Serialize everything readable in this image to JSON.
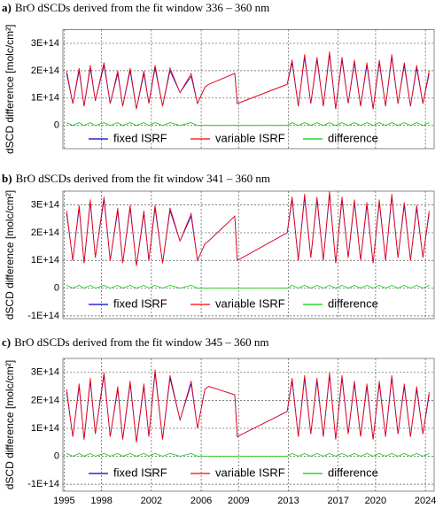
{
  "chart_data": [
    {
      "type": "line",
      "label": "a)",
      "title": "BrO dSCDs derived from the fit window 336 – 360 nm",
      "y_label": "dSCD difference [molc/cm²]",
      "grid": true,
      "x_tick_labels": false,
      "xlim": [
        1994.9,
        2024.7
      ],
      "xticks": [
        1995,
        1998,
        2002,
        2006,
        2009,
        2013,
        2017,
        2020,
        2024
      ],
      "ylim": [
        -85000000000000.0,
        350000000000000.0
      ],
      "yticks": [
        0,
        {
          "value": 100000000000000.0,
          "label": "1E+14"
        },
        {
          "value": 200000000000000.0,
          "label": "2E+14"
        },
        {
          "value": 300000000000000.0,
          "label": "3E+14"
        }
      ],
      "x": [
        1995.2,
        1995.7,
        1996.2,
        1996.6,
        1997.1,
        1997.5,
        1998.2,
        1998.7,
        1999.3,
        1999.7,
        2000.3,
        2000.8,
        2001.4,
        2001.8,
        2002.3,
        2002.9,
        2003.5,
        2004.3,
        2005.2,
        2005.7,
        2006.3,
        2006.6,
        2008.7,
        2008.9,
        2012.9,
        2013.3,
        2013.8,
        2014.3,
        2014.8,
        2015.3,
        2015.8,
        2016.3,
        2016.8,
        2017.3,
        2017.8,
        2018.3,
        2018.8,
        2019.3,
        2019.8,
        2020.3,
        2020.8,
        2021.3,
        2021.8,
        2022.3,
        2022.8,
        2023.3,
        2023.8,
        2024.3
      ],
      "series": [
        {
          "name": "fixed ISRF",
          "color": "#0000cc",
          "values": [
            190000000000000.0,
            80000000000000.0,
            200000000000000.0,
            70000000000000.0,
            210000000000000.0,
            90000000000000.0,
            220000000000000.0,
            80000000000000.0,
            190000000000000.0,
            70000000000000.0,
            200000000000000.0,
            60000000000000.0,
            190000000000000.0,
            80000000000000.0,
            210000000000000.0,
            70000000000000.0,
            200000000000000.0,
            120000000000000.0,
            180000000000000.0,
            80000000000000.0,
            140000000000000.0,
            150000000000000.0,
            190000000000000.0,
            80000000000000.0,
            150000000000000.0,
            230000000000000.0,
            70000000000000.0,
            250000000000000.0,
            80000000000000.0,
            240000000000000.0,
            70000000000000.0,
            260000000000000.0,
            60000000000000.0,
            240000000000000.0,
            80000000000000.0,
            230000000000000.0,
            70000000000000.0,
            220000000000000.0,
            60000000000000.0,
            230000000000000.0,
            70000000000000.0,
            250000000000000.0,
            80000000000000.0,
            220000000000000.0,
            70000000000000.0,
            210000000000000.0,
            80000000000000.0,
            190000000000000.0
          ]
        },
        {
          "name": "variable ISRF",
          "color": "#ff0000",
          "values": [
            200000000000000.0,
            80000000000000.0,
            210000000000000.0,
            70000000000000.0,
            220000000000000.0,
            90000000000000.0,
            230000000000000.0,
            80000000000000.0,
            200000000000000.0,
            70000000000000.0,
            210000000000000.0,
            60000000000000.0,
            200000000000000.0,
            80000000000000.0,
            220000000000000.0,
            70000000000000.0,
            210000000000000.0,
            120000000000000.0,
            190000000000000.0,
            80000000000000.0,
            140000000000000.0,
            150000000000000.0,
            190000000000000.0,
            80000000000000.0,
            150000000000000.0,
            240000000000000.0,
            70000000000000.0,
            260000000000000.0,
            80000000000000.0,
            250000000000000.0,
            70000000000000.0,
            270000000000000.0,
            60000000000000.0,
            250000000000000.0,
            80000000000000.0,
            240000000000000.0,
            70000000000000.0,
            230000000000000.0,
            60000000000000.0,
            240000000000000.0,
            70000000000000.0,
            260000000000000.0,
            80000000000000.0,
            230000000000000.0,
            70000000000000.0,
            220000000000000.0,
            80000000000000.0,
            200000000000000.0
          ]
        },
        {
          "name": "difference",
          "color": "#00cc00",
          "values": [
            10000000000000.0,
            0,
            10000000000000.0,
            0,
            10000000000000.0,
            0,
            10000000000000.0,
            0,
            10000000000000.0,
            0,
            10000000000000.0,
            0,
            10000000000000.0,
            0,
            10000000000000.0,
            0,
            10000000000000.0,
            0,
            10000000000000.0,
            0,
            0,
            0,
            0,
            0,
            0,
            10000000000000.0,
            0,
            10000000000000.0,
            0,
            10000000000000.0,
            0,
            10000000000000.0,
            0,
            10000000000000.0,
            0,
            10000000000000.0,
            0,
            10000000000000.0,
            0,
            10000000000000.0,
            0,
            10000000000000.0,
            0,
            10000000000000.0,
            0,
            10000000000000.0,
            0,
            10000000000000.0
          ]
        }
      ]
    },
    {
      "type": "line",
      "label": "b)",
      "title": "BrO dSCDs derived from the fit window 341 – 360 nm",
      "y_label": "dSCD difference [molc/cm²]",
      "grid": true,
      "x_tick_labels": false,
      "xlim": [
        1994.9,
        2024.7
      ],
      "xticks": [
        1995,
        1998,
        2002,
        2006,
        2009,
        2013,
        2017,
        2020,
        2024
      ],
      "ylim": [
        -110000000000000.0,
        350000000000000.0
      ],
      "yticks": [
        {
          "value": -100000000000000.0,
          "label": "-1E+14"
        },
        0,
        {
          "value": 100000000000000.0,
          "label": "1E+14"
        },
        {
          "value": 200000000000000.0,
          "label": "2E+14"
        },
        {
          "value": 300000000000000.0,
          "label": "3E+14"
        }
      ],
      "x": [
        1995.2,
        1995.7,
        1996.2,
        1996.6,
        1997.1,
        1997.5,
        1998.2,
        1998.7,
        1999.3,
        1999.7,
        2000.3,
        2000.8,
        2001.4,
        2001.8,
        2002.3,
        2002.9,
        2003.5,
        2004.3,
        2005.2,
        2005.7,
        2006.3,
        2006.6,
        2008.7,
        2008.9,
        2012.9,
        2013.3,
        2013.8,
        2014.3,
        2014.8,
        2015.3,
        2015.8,
        2016.3,
        2016.8,
        2017.3,
        2017.8,
        2018.3,
        2018.8,
        2019.3,
        2019.8,
        2020.3,
        2020.8,
        2021.3,
        2021.8,
        2022.3,
        2022.8,
        2023.3,
        2023.8,
        2024.3
      ],
      "series": [
        {
          "name": "fixed ISRF",
          "color": "#0000cc",
          "values": [
            270000000000000.0,
            100000000000000.0,
            290000000000000.0,
            90000000000000.0,
            310000000000000.0,
            110000000000000.0,
            320000000000000.0,
            100000000000000.0,
            280000000000000.0,
            90000000000000.0,
            290000000000000.0,
            80000000000000.0,
            270000000000000.0,
            100000000000000.0,
            290000000000000.0,
            90000000000000.0,
            280000000000000.0,
            170000000000000.0,
            260000000000000.0,
            100000000000000.0,
            160000000000000.0,
            170000000000000.0,
            260000000000000.0,
            100000000000000.0,
            200000000000000.0,
            320000000000000.0,
            100000000000000.0,
            330000000000000.0,
            110000000000000.0,
            320000000000000.0,
            100000000000000.0,
            340000000000000.0,
            90000000000000.0,
            320000000000000.0,
            110000000000000.0,
            310000000000000.0,
            100000000000000.0,
            300000000000000.0,
            90000000000000.0,
            310000000000000.0,
            100000000000000.0,
            330000000000000.0,
            110000000000000.0,
            300000000000000.0,
            100000000000000.0,
            290000000000000.0,
            110000000000000.0,
            270000000000000.0
          ]
        },
        {
          "name": "variable ISRF",
          "color": "#ff0000",
          "values": [
            280000000000000.0,
            100000000000000.0,
            300000000000000.0,
            90000000000000.0,
            320000000000000.0,
            110000000000000.0,
            330000000000000.0,
            100000000000000.0,
            290000000000000.0,
            90000000000000.0,
            300000000000000.0,
            80000000000000.0,
            280000000000000.0,
            100000000000000.0,
            300000000000000.0,
            90000000000000.0,
            290000000000000.0,
            170000000000000.0,
            270000000000000.0,
            100000000000000.0,
            160000000000000.0,
            170000000000000.0,
            260000000000000.0,
            100000000000000.0,
            200000000000000.0,
            330000000000000.0,
            100000000000000.0,
            340000000000000.0,
            110000000000000.0,
            330000000000000.0,
            100000000000000.0,
            350000000000000.0,
            90000000000000.0,
            330000000000000.0,
            110000000000000.0,
            320000000000000.0,
            100000000000000.0,
            310000000000000.0,
            90000000000000.0,
            320000000000000.0,
            100000000000000.0,
            340000000000000.0,
            110000000000000.0,
            310000000000000.0,
            100000000000000.0,
            300000000000000.0,
            110000000000000.0,
            280000000000000.0
          ]
        },
        {
          "name": "difference",
          "color": "#00cc00",
          "values": [
            10000000000000.0,
            0,
            10000000000000.0,
            0,
            10000000000000.0,
            0,
            10000000000000.0,
            0,
            10000000000000.0,
            0,
            10000000000000.0,
            0,
            10000000000000.0,
            0,
            10000000000000.0,
            0,
            10000000000000.0,
            0,
            10000000000000.0,
            0,
            0,
            0,
            0,
            0,
            0,
            10000000000000.0,
            0,
            10000000000000.0,
            0,
            10000000000000.0,
            0,
            10000000000000.0,
            0,
            10000000000000.0,
            0,
            10000000000000.0,
            0,
            10000000000000.0,
            0,
            10000000000000.0,
            0,
            10000000000000.0,
            0,
            10000000000000.0,
            0,
            10000000000000.0,
            0,
            10000000000000.0
          ]
        }
      ]
    },
    {
      "type": "line",
      "label": "c)",
      "title": "BrO dSCDs derived from the fit window 345 – 360 nm",
      "y_label": "dSCD difference [molc/cm²]",
      "grid": true,
      "x_tick_labels": true,
      "xlim": [
        1994.9,
        2024.7
      ],
      "xticks": [
        1995,
        1998,
        2002,
        2006,
        2009,
        2013,
        2017,
        2020,
        2024
      ],
      "ylim": [
        -125000000000000.0,
        350000000000000.0
      ],
      "yticks": [
        {
          "value": -100000000000000.0,
          "label": "-1E+14"
        },
        0,
        {
          "value": 100000000000000.0,
          "label": "1E+14"
        },
        {
          "value": 200000000000000.0,
          "label": "2E+14"
        },
        {
          "value": 300000000000000.0,
          "label": "3E+14"
        }
      ],
      "x": [
        1995.2,
        1995.7,
        1996.2,
        1996.6,
        1997.1,
        1997.5,
        1998.2,
        1998.7,
        1999.3,
        1999.7,
        2000.3,
        2000.8,
        2001.4,
        2001.8,
        2002.3,
        2002.9,
        2003.5,
        2004.3,
        2005.2,
        2005.7,
        2006.3,
        2006.6,
        2008.7,
        2008.9,
        2012.9,
        2013.3,
        2013.8,
        2014.3,
        2014.8,
        2015.3,
        2015.8,
        2016.3,
        2016.8,
        2017.3,
        2017.8,
        2018.3,
        2018.8,
        2019.3,
        2019.8,
        2020.3,
        2020.8,
        2021.3,
        2021.8,
        2022.3,
        2022.8,
        2023.3,
        2023.8,
        2024.3
      ],
      "series": [
        {
          "name": "fixed ISRF",
          "color": "#0000cc",
          "values": [
            230000000000000.0,
            70000000000000.0,
            250000000000000.0,
            60000000000000.0,
            270000000000000.0,
            80000000000000.0,
            290000000000000.0,
            70000000000000.0,
            240000000000000.0,
            60000000000000.0,
            260000000000000.0,
            50000000000000.0,
            250000000000000.0,
            70000000000000.0,
            300000000000000.0,
            60000000000000.0,
            280000000000000.0,
            130000000000000.0,
            260000000000000.0,
            100000000000000.0,
            240000000000000.0,
            250000000000000.0,
            220000000000000.0,
            70000000000000.0,
            160000000000000.0,
            270000000000000.0,
            70000000000000.0,
            280000000000000.0,
            80000000000000.0,
            270000000000000.0,
            70000000000000.0,
            290000000000000.0,
            60000000000000.0,
            280000000000000.0,
            80000000000000.0,
            260000000000000.0,
            70000000000000.0,
            250000000000000.0,
            60000000000000.0,
            260000000000000.0,
            70000000000000.0,
            280000000000000.0,
            80000000000000.0,
            250000000000000.0,
            70000000000000.0,
            240000000000000.0,
            80000000000000.0,
            220000000000000.0
          ]
        },
        {
          "name": "variable ISRF",
          "color": "#ff0000",
          "values": [
            240000000000000.0,
            70000000000000.0,
            260000000000000.0,
            60000000000000.0,
            280000000000000.0,
            80000000000000.0,
            300000000000000.0,
            70000000000000.0,
            250000000000000.0,
            60000000000000.0,
            270000000000000.0,
            50000000000000.0,
            260000000000000.0,
            70000000000000.0,
            310000000000000.0,
            60000000000000.0,
            290000000000000.0,
            130000000000000.0,
            270000000000000.0,
            100000000000000.0,
            240000000000000.0,
            250000000000000.0,
            220000000000000.0,
            70000000000000.0,
            160000000000000.0,
            280000000000000.0,
            70000000000000.0,
            290000000000000.0,
            80000000000000.0,
            280000000000000.0,
            70000000000000.0,
            300000000000000.0,
            60000000000000.0,
            290000000000000.0,
            80000000000000.0,
            270000000000000.0,
            70000000000000.0,
            260000000000000.0,
            60000000000000.0,
            270000000000000.0,
            70000000000000.0,
            290000000000000.0,
            80000000000000.0,
            260000000000000.0,
            70000000000000.0,
            250000000000000.0,
            80000000000000.0,
            230000000000000.0
          ]
        },
        {
          "name": "difference",
          "color": "#00cc00",
          "values": [
            10000000000000.0,
            0,
            10000000000000.0,
            0,
            10000000000000.0,
            0,
            10000000000000.0,
            0,
            10000000000000.0,
            0,
            10000000000000.0,
            0,
            10000000000000.0,
            0,
            10000000000000.0,
            0,
            10000000000000.0,
            0,
            10000000000000.0,
            0,
            0,
            0,
            0,
            0,
            0,
            10000000000000.0,
            0,
            10000000000000.0,
            0,
            10000000000000.0,
            0,
            10000000000000.0,
            0,
            10000000000000.0,
            0,
            10000000000000.0,
            0,
            10000000000000.0,
            0,
            10000000000000.0,
            0,
            10000000000000.0,
            0,
            10000000000000.0,
            0,
            10000000000000.0,
            0,
            10000000000000.0
          ]
        }
      ]
    }
  ]
}
